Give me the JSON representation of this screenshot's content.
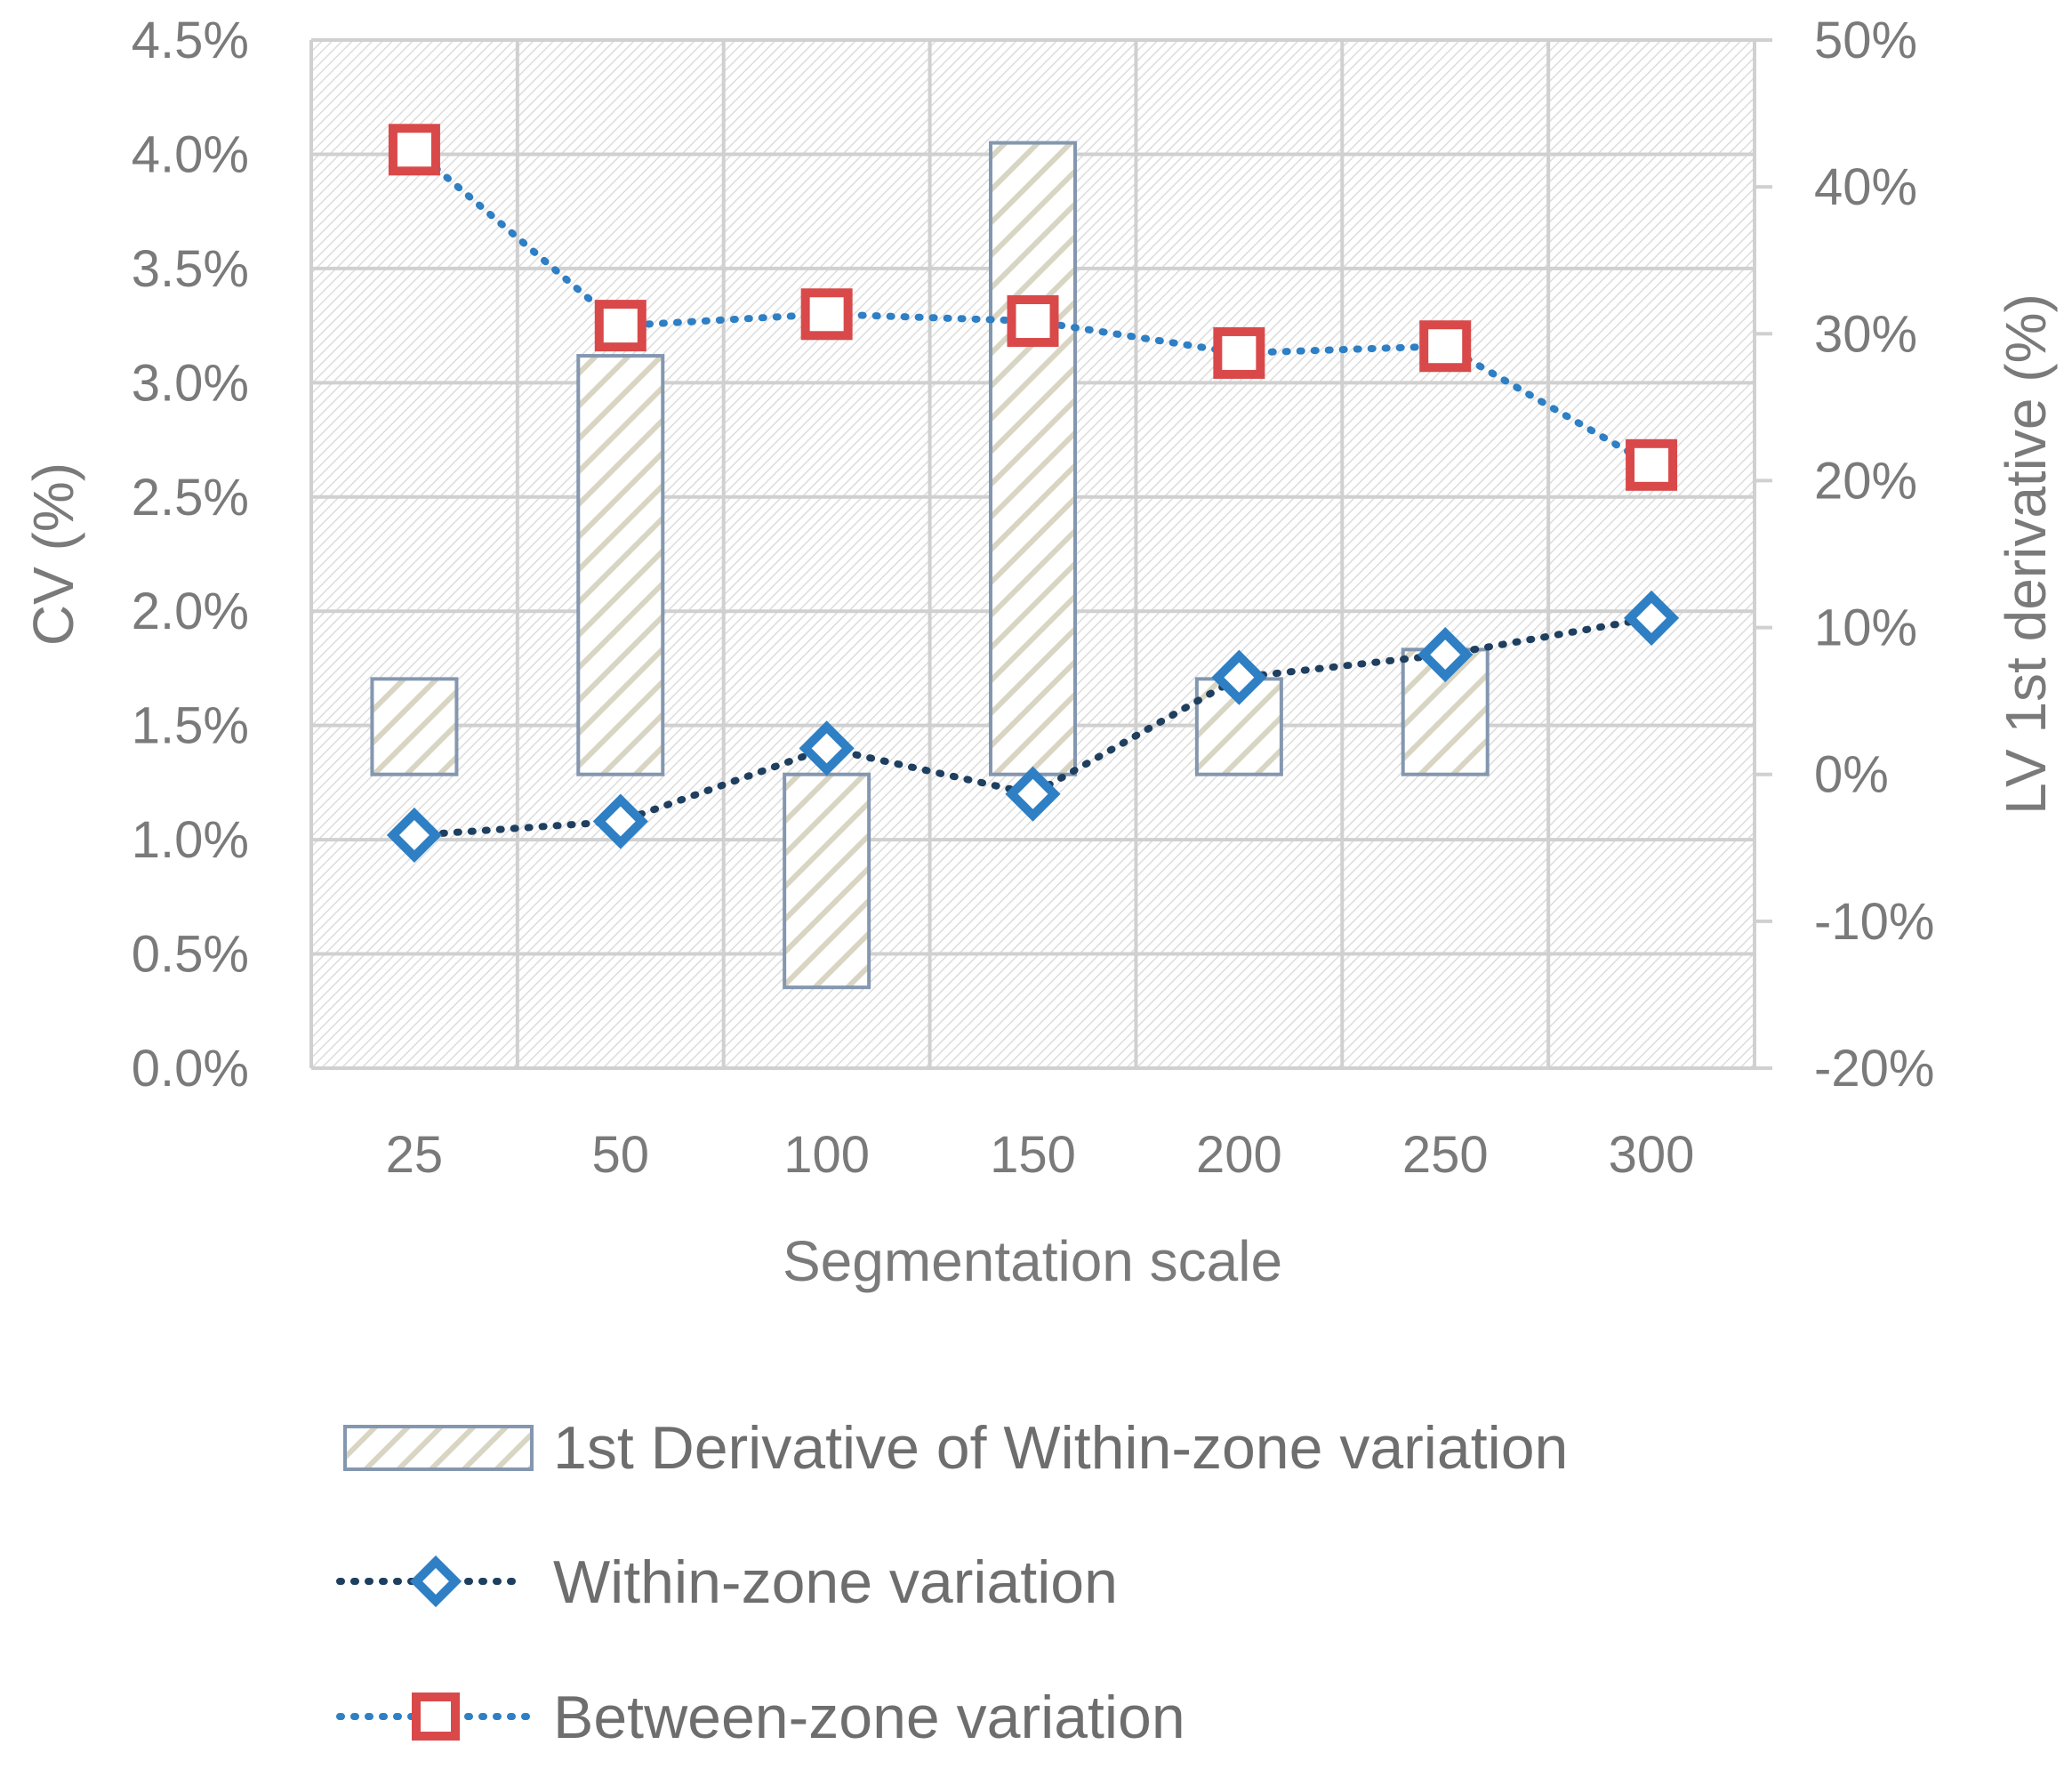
{
  "chart_data": {
    "type": "bar",
    "title": "",
    "categories": [
      "25",
      "50",
      "100",
      "150",
      "200",
      "250",
      "300"
    ],
    "xlabel": "Segmentation scale",
    "ylabel": "CV (%)",
    "y2label": "LV 1st derivative (%)",
    "ylim": [
      0,
      4.5
    ],
    "y2lim": [
      -20,
      50
    ],
    "yticks": [
      "0.0%",
      "0.5%",
      "1.0%",
      "1.5%",
      "2.0%",
      "2.5%",
      "3.0%",
      "3.5%",
      "4.0%",
      "4.5%"
    ],
    "y2ticks": [
      "-20%",
      "-10%",
      "0%",
      "10%",
      "20%",
      "30%",
      "40%",
      "50%"
    ],
    "grid": true,
    "legend_position": "bottom",
    "series": [
      {
        "name": "1st Derivative of Within-zone variation",
        "type": "bar",
        "axis": "right",
        "values": [
          6.5,
          28.5,
          -14.5,
          43,
          6.5,
          8.5,
          0
        ]
      },
      {
        "name": "Within-zone variation",
        "type": "line",
        "axis": "left",
        "marker": "diamond",
        "values": [
          1.02,
          1.08,
          1.4,
          1.2,
          1.71,
          1.81,
          1.97
        ]
      },
      {
        "name": "Between-zone variation",
        "type": "line",
        "axis": "left",
        "marker": "square",
        "values": [
          4.02,
          3.25,
          3.3,
          3.27,
          3.13,
          3.16,
          2.64
        ]
      }
    ],
    "colors": {
      "bar_border": "#8497b0",
      "bar_hatch": "#d9d5c3",
      "within_line": "#1f3f5f",
      "within_marker": "#2e7fc4",
      "between_line": "#2e7fc4",
      "between_marker": "#d9494a"
    }
  }
}
